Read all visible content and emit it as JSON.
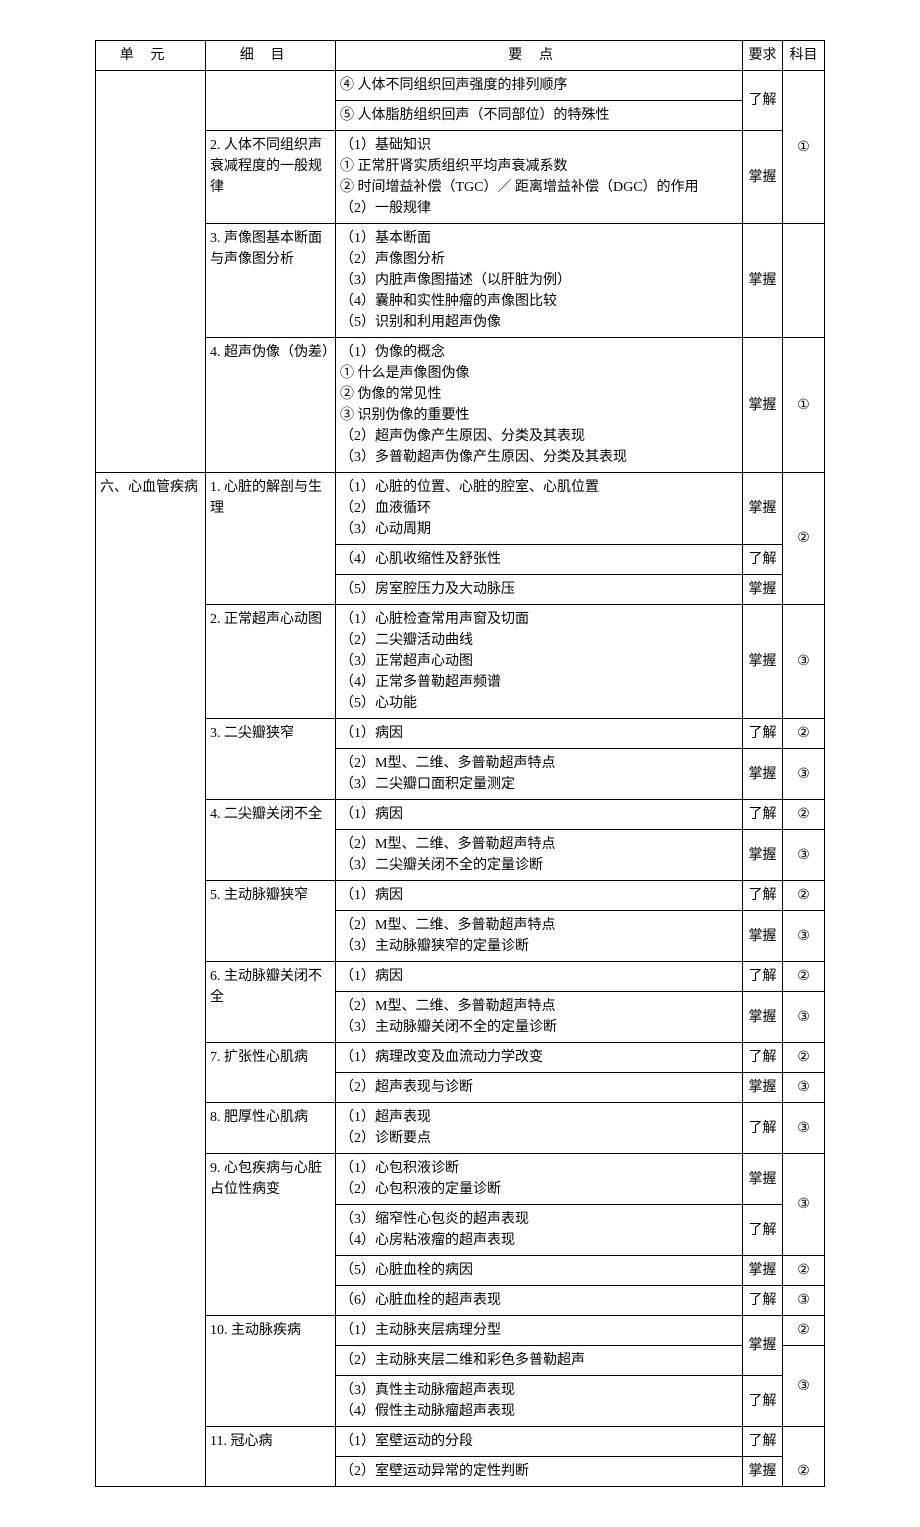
{
  "headers": {
    "unit": "单元",
    "detail": "细目",
    "point": "要点",
    "req": "要求",
    "sub": "科目"
  },
  "labels": {
    "zhangwo": "掌握",
    "liaojie": "了解",
    "c1": "①",
    "c2": "②",
    "c3": "③"
  },
  "units": {
    "u6": "六、心血管疾病"
  },
  "details": {
    "d_prev_4": "④ 人体不同组织回声强度的排列顺序",
    "d_prev_5": "⑤ 人体脂肪组织回声（不同部位）的特殊性",
    "d2_title": "2. 人体不同组织声衰减程度的一般规律",
    "d2_p": "（1）基础知识\n ① 正常肝肾实质组织平均声衰减系数\n ② 时间增益补偿（TGC）／ 距离增益补偿（DGC）的作用\n（2）一般规律",
    "d3_title": "3. 声像图基本断面与声像图分析",
    "d3_p": "（1）基本断面\n（2）声像图分析\n（3）内脏声像图描述（以肝脏为例）\n（4）囊肿和实性肿瘤的声像图比较\n（5）识别和利用超声伪像",
    "d4_title": "4. 超声伪像（伪差）",
    "d4_p": "（1）伪像的概念\n ① 什么是声像图伪像\n ② 伪像的常见性\n ③ 识别伪像的重要性\n（2）超声伪像产生原因、分类及其表现\n（3）多普勒超声伪像产生原因、分类及其表现",
    "d61_title": "1. 心脏的解剖与生理",
    "d61_a": "（1）心脏的位置、心脏的腔室、心肌位置\n（2）血液循环\n（3）心动周期",
    "d61_b": "（4）心肌收缩性及舒张性",
    "d61_c": "（5）房室腔压力及大动脉压",
    "d62_title": "2. 正常超声心动图",
    "d62_p": "（1）心脏检查常用声窗及切面\n（2）二尖瓣活动曲线\n（3）正常超声心动图\n（4）正常多普勒超声频谱\n（5）心功能",
    "d63_title": "3. 二尖瓣狭窄",
    "d63_a": "（1）病因",
    "d63_b": "（2）M型、二维、多普勒超声特点\n（3）二尖瓣口面积定量测定",
    "d64_title": "4. 二尖瓣关闭不全",
    "d64_a": "（1）病因",
    "d64_b": "（2）M型、二维、多普勒超声特点\n（3）二尖瓣关闭不全的定量诊断",
    "d65_title": "5. 主动脉瓣狭窄",
    "d65_a": "（1）病因",
    "d65_b": "（2）M型、二维、多普勒超声特点\n（3）主动脉瓣狭窄的定量诊断",
    "d66_title": "6. 主动脉瓣关闭不全",
    "d66_a": "（1）病因",
    "d66_b": "（2）M型、二维、多普勒超声特点\n（3）主动脉瓣关闭不全的定量诊断",
    "d67_title": "7. 扩张性心肌病",
    "d67_a": "（1）病理改变及血流动力学改变",
    "d67_b": "（2）超声表现与诊断",
    "d68_title": "8. 肥厚性心肌病",
    "d68_p": "（1）超声表现\n（2）诊断要点",
    "d69_title": "9. 心包疾病与心脏占位性病变",
    "d69_a": "（1）心包积液诊断\n（2）心包积液的定量诊断",
    "d69_b": "（3）缩窄性心包炎的超声表现\n（4）心房粘液瘤的超声表现",
    "d69_c": "（5）心脏血栓的病因",
    "d69_d": "（6）心脏血栓的超声表现",
    "d610_title": "10. 主动脉疾病",
    "d610_a": "（1）主动脉夹层病理分型",
    "d610_b": "（2）主动脉夹层二维和彩色多普勒超声",
    "d610_c": "（3）真性主动脉瘤超声表现\n（4）假性主动脉瘤超声表现",
    "d611_title": "11. 冠心病",
    "d611_a": "（1）室壁运动的分段",
    "d611_b": "（2）室壁运动异常的定性判断"
  }
}
